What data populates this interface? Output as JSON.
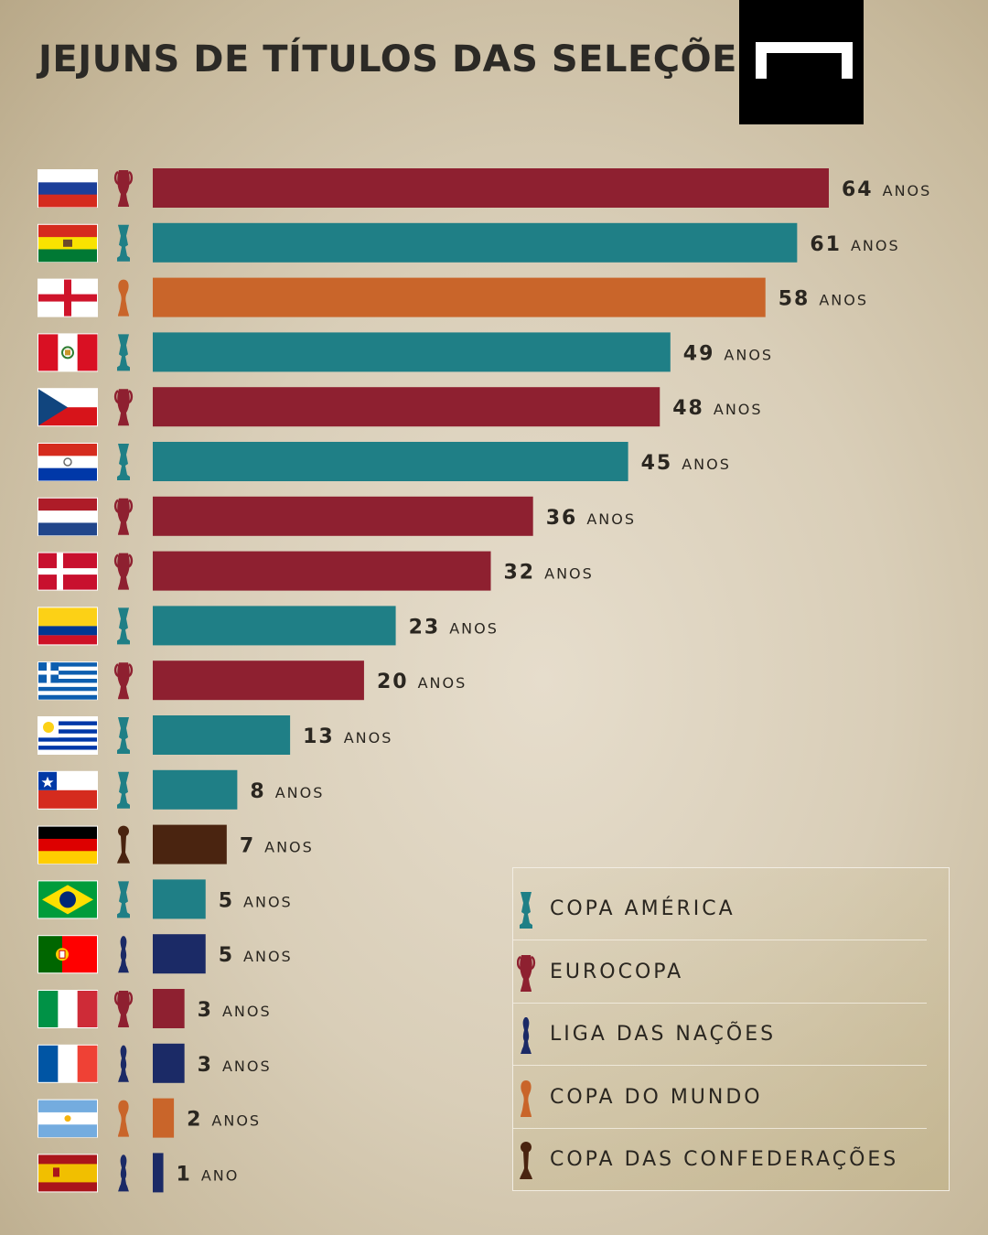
{
  "title": "JEJUNS DE TÍTULOS DAS SELEÇÕES",
  "colors": {
    "copa_america": "#1f7f86",
    "eurocopa": "#8e2030",
    "liga_das_nacoes": "#1b2a66",
    "copa_do_mundo": "#c9652a",
    "copa_das_confederacoes": "#4a2410"
  },
  "legend": [
    {
      "key": "copa_america",
      "label": "COPA AMÉRICA",
      "icon": "copa-america-trophy-icon"
    },
    {
      "key": "eurocopa",
      "label": "EUROCOPA",
      "icon": "eurocopa-trophy-icon"
    },
    {
      "key": "liga_das_nacoes",
      "label": "LIGA DAS NAÇÕES",
      "icon": "liga-das-nacoes-trophy-icon"
    },
    {
      "key": "copa_do_mundo",
      "label": "COPA DO MUNDO",
      "icon": "copa-do-mundo-trophy-icon"
    },
    {
      "key": "copa_das_confederacoes",
      "label": "COPA DAS CONFEDERAÇÕES",
      "icon": "copa-das-confederacoes-trophy-icon"
    }
  ],
  "chart_data": {
    "type": "bar",
    "orientation": "horizontal",
    "grid": false,
    "legend_position": "bottom-right",
    "xlim": [
      0,
      64
    ],
    "unit_plural": "ANOS",
    "unit_singular": "ANO",
    "bars": [
      {
        "country": "russia",
        "flag": "russia-flag-icon",
        "trophy": "eurocopa",
        "value": 64
      },
      {
        "country": "bolivia",
        "flag": "bolivia-flag-icon",
        "trophy": "copa_america",
        "value": 61
      },
      {
        "country": "england",
        "flag": "england-flag-icon",
        "trophy": "copa_do_mundo",
        "value": 58
      },
      {
        "country": "peru",
        "flag": "peru-flag-icon",
        "trophy": "copa_america",
        "value": 49
      },
      {
        "country": "czech-republic",
        "flag": "czech-republic-flag-icon",
        "trophy": "eurocopa",
        "value": 48
      },
      {
        "country": "paraguay",
        "flag": "paraguay-flag-icon",
        "trophy": "copa_america",
        "value": 45
      },
      {
        "country": "netherlands",
        "flag": "netherlands-flag-icon",
        "trophy": "eurocopa",
        "value": 36
      },
      {
        "country": "denmark",
        "flag": "denmark-flag-icon",
        "trophy": "eurocopa",
        "value": 32
      },
      {
        "country": "colombia",
        "flag": "colombia-flag-icon",
        "trophy": "copa_america",
        "value": 23
      },
      {
        "country": "greece",
        "flag": "greece-flag-icon",
        "trophy": "eurocopa",
        "value": 20
      },
      {
        "country": "uruguay",
        "flag": "uruguay-flag-icon",
        "trophy": "copa_america",
        "value": 13
      },
      {
        "country": "chile",
        "flag": "chile-flag-icon",
        "trophy": "copa_america",
        "value": 8
      },
      {
        "country": "germany",
        "flag": "germany-flag-icon",
        "trophy": "copa_das_confederacoes",
        "value": 7
      },
      {
        "country": "brazil",
        "flag": "brazil-flag-icon",
        "trophy": "copa_america",
        "value": 5
      },
      {
        "country": "portugal",
        "flag": "portugal-flag-icon",
        "trophy": "liga_das_nacoes",
        "value": 5
      },
      {
        "country": "italy",
        "flag": "italy-flag-icon",
        "trophy": "eurocopa",
        "value": 3
      },
      {
        "country": "france",
        "flag": "france-flag-icon",
        "trophy": "liga_das_nacoes",
        "value": 3
      },
      {
        "country": "argentina",
        "flag": "argentina-flag-icon",
        "trophy": "copa_do_mundo",
        "value": 2
      },
      {
        "country": "spain",
        "flag": "spain-flag-icon",
        "trophy": "liga_das_nacoes",
        "value": 1
      }
    ]
  }
}
